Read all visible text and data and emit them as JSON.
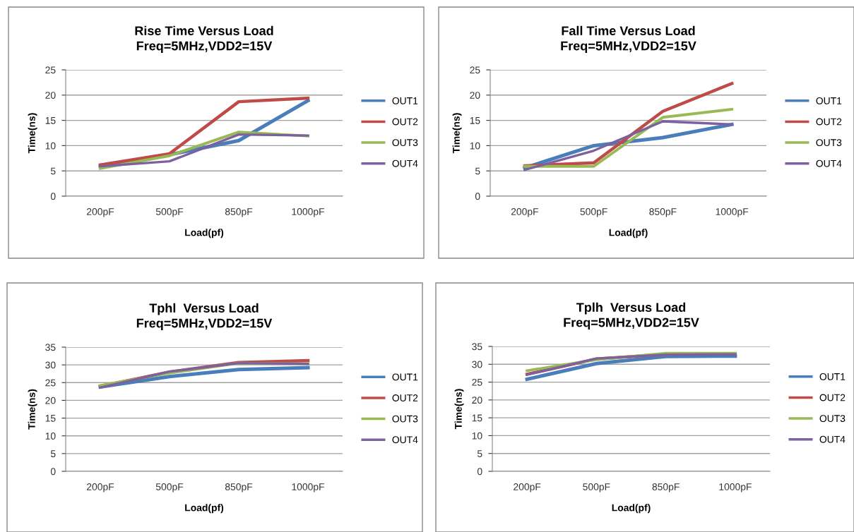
{
  "chart_data": [
    {
      "type": "line",
      "title": "Rise Time Versus Load\nFreq=5MHz,VDD2=15V",
      "xlabel": "Load(pf)",
      "ylabel": "Time(ns)",
      "categories": [
        "200pF",
        "500pF",
        "850pF",
        "1000pF"
      ],
      "ylim": [
        0,
        25
      ],
      "yticks": [
        0,
        5,
        10,
        15,
        20,
        25
      ],
      "grid": "y",
      "legend": "right",
      "marker": "none",
      "line_style": "solid",
      "series": [
        {
          "name": "OUT1",
          "color": "#4a7ebb",
          "values": [
            5.9,
            8.2,
            11.0,
            18.9
          ]
        },
        {
          "name": "OUT2",
          "color": "#be4b48",
          "values": [
            6.2,
            8.4,
            18.7,
            19.4
          ]
        },
        {
          "name": "OUT3",
          "color": "#98b954",
          "values": [
            5.5,
            8.0,
            12.7,
            11.9
          ]
        },
        {
          "name": "OUT4",
          "color": "#7d60a0",
          "values": [
            5.9,
            6.9,
            12.2,
            12.0
          ]
        }
      ]
    },
    {
      "type": "line",
      "title": "Fall Time Versus Load\nFreq=5MHz,VDD2=15V",
      "xlabel": "Load(pf)",
      "ylabel": "Time(ns)",
      "categories": [
        "200pF",
        "500pF",
        "850pF",
        "1000pF"
      ],
      "ylim": [
        0,
        25
      ],
      "yticks": [
        0,
        5,
        10,
        15,
        20,
        25
      ],
      "grid": "y",
      "legend": "right",
      "marker": "none",
      "line_style": "solid",
      "series": [
        {
          "name": "OUT1",
          "color": "#4a7ebb",
          "values": [
            5.6,
            10.0,
            11.6,
            14.2
          ]
        },
        {
          "name": "OUT2",
          "color": "#be4b48",
          "values": [
            6.0,
            6.6,
            16.8,
            22.3
          ]
        },
        {
          "name": "OUT3",
          "color": "#98b954",
          "values": [
            5.9,
            5.9,
            15.6,
            17.2
          ]
        },
        {
          "name": "OUT4",
          "color": "#7d60a0",
          "values": [
            5.2,
            9.0,
            14.8,
            14.2
          ]
        }
      ]
    },
    {
      "type": "line",
      "title": "Tphl  Versus Load\nFreq=5MHz,VDD2=15V",
      "xlabel": "Load(pf)",
      "ylabel": "Time(ns)",
      "categories": [
        "200pF",
        "500pF",
        "850pF",
        "1000pF"
      ],
      "ylim": [
        0,
        35
      ],
      "yticks": [
        0,
        5,
        10,
        15,
        20,
        25,
        30,
        35
      ],
      "grid": "y",
      "legend": "right",
      "marker": "none",
      "line_style": "solid",
      "series": [
        {
          "name": "OUT1",
          "color": "#4a7ebb",
          "values": [
            23.8,
            26.7,
            28.7,
            29.2
          ]
        },
        {
          "name": "OUT2",
          "color": "#be4b48",
          "values": [
            24.0,
            28.0,
            30.7,
            31.2
          ]
        },
        {
          "name": "OUT3",
          "color": "#98b954",
          "values": [
            24.2,
            27.7,
            30.5,
            30.3
          ]
        },
        {
          "name": "OUT4",
          "color": "#7d60a0",
          "values": [
            23.6,
            28.1,
            30.5,
            30.3
          ]
        }
      ]
    },
    {
      "type": "line",
      "title": "Tplh  Versus Load\nFreq=5MHz,VDD2=15V",
      "xlabel": "Load(pf)",
      "ylabel": "Time(ns)",
      "categories": [
        "200pF",
        "500pF",
        "850pF",
        "1000pF"
      ],
      "ylim": [
        0,
        35
      ],
      "yticks": [
        0,
        5,
        10,
        15,
        20,
        25,
        30,
        35
      ],
      "grid": "y",
      "legend": "right",
      "marker": "none",
      "line_style": "solid",
      "series": [
        {
          "name": "OUT1",
          "color": "#4a7ebb",
          "values": [
            25.8,
            30.2,
            32.2,
            32.3
          ]
        },
        {
          "name": "OUT2",
          "color": "#be4b48",
          "values": [
            27.2,
            31.5,
            32.8,
            32.9
          ]
        },
        {
          "name": "OUT3",
          "color": "#98b954",
          "values": [
            28.2,
            31.3,
            33.1,
            33.1
          ]
        },
        {
          "name": "OUT4",
          "color": "#7d60a0",
          "values": [
            27.1,
            31.6,
            32.7,
            32.8
          ]
        }
      ]
    }
  ]
}
